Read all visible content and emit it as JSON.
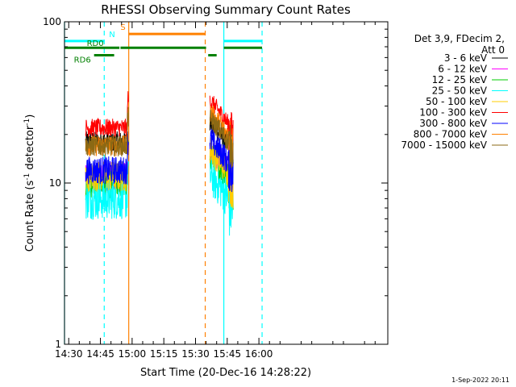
{
  "chart_data": {
    "type": "line",
    "title": "RHESSI Observing Summary Count Rates",
    "xlabel": "Start Time (20-Dec-16 14:28:22)",
    "ylabel": "Count Rate (s⁻¹ detector⁻¹)",
    "ylabel_main": "Count Rate (s",
    "ylabel_sup1": "-1",
    "ylabel_mid": " detector",
    "ylabel_sup2": "-1",
    "ylabel_end": ")",
    "yscale": "log",
    "ylim": [
      1,
      100
    ],
    "xlim_minutes": [
      -2,
      151
    ],
    "x_origin": "14:30",
    "x_ticks": [
      {
        "minute": 0,
        "label": "14:30"
      },
      {
        "minute": 15,
        "label": "14:45"
      },
      {
        "minute": 30,
        "label": "15:00"
      },
      {
        "minute": 45,
        "label": "15:15"
      },
      {
        "minute": 60,
        "label": "15:30"
      },
      {
        "minute": 75,
        "label": "15:45"
      },
      {
        "minute": 90,
        "label": "16:00"
      }
    ],
    "y_ticks": [
      {
        "value": 1,
        "label": "1"
      },
      {
        "value": 10,
        "label": "10"
      },
      {
        "value": 100,
        "label": "100"
      }
    ],
    "legend": {
      "header": [
        "Det 3,9, FDecim 2,",
        "Att 0"
      ],
      "position": "right"
    },
    "series": [
      {
        "name": "3 - 6 keV",
        "color": "#000000",
        "seg1": 18,
        "seg2": 19,
        "noise": 0.15
      },
      {
        "name": "6 - 12 keV",
        "color": "#ff00ff",
        "seg1": 11,
        "seg2": 13,
        "noise": 0.22
      },
      {
        "name": "12 - 25 keV",
        "color": "#00cc00",
        "seg1": 10,
        "seg2": 12,
        "noise": 0.22
      },
      {
        "name": "25 - 50 keV",
        "color": "#00ffff",
        "seg1": 8,
        "seg2": 9,
        "noise": 0.3
      },
      {
        "name": "50 - 100 keV",
        "color": "#ffcc00",
        "seg1": 11,
        "seg2": 13,
        "noise": 0.22
      },
      {
        "name": "100 - 300 keV",
        "color": "#ff0000",
        "seg1": 22,
        "seg2": 26,
        "noise": 0.13
      },
      {
        "name": "300 - 800 keV",
        "color": "#0000ff",
        "seg1": 12,
        "seg2": 15,
        "noise": 0.2
      },
      {
        "name": "800 - 7000 keV",
        "color": "#ff8000",
        "seg1": 17,
        "seg2": 22,
        "noise": 0.15
      },
      {
        "name": "7000 - 15000 keV",
        "color": "#8b6914",
        "seg1": 17,
        "seg2": 20,
        "noise": 0.15
      }
    ],
    "data_segments": [
      {
        "start_min": 8.0,
        "end_min": 28.3
      },
      {
        "start_min": 66.8,
        "end_min": 77.8
      }
    ],
    "vlines": [
      {
        "minute": -2.0,
        "color": "#00ffff",
        "style": "solid"
      },
      {
        "minute": 16.8,
        "color": "#00ffff",
        "style": "dashed"
      },
      {
        "minute": 28.4,
        "color": "#ff8000",
        "style": "solid"
      },
      {
        "minute": 64.6,
        "color": "#ff8000",
        "style": "dashed"
      },
      {
        "minute": 73.4,
        "color": "#00ffff",
        "style": "solid"
      },
      {
        "minute": 91.5,
        "color": "#00ffff",
        "style": "dashed"
      }
    ],
    "flag_bars": [
      {
        "label": "N",
        "color": "#00ffff",
        "y_value": 76,
        "start_min": -2.0,
        "end_min": 16.8,
        "label_side": "end"
      },
      {
        "label": "N",
        "color": "#00ffff",
        "y_value": 76,
        "start_min": 73.4,
        "end_min": 91.5,
        "label_side": "none"
      },
      {
        "label": "S",
        "color": "#ff8000",
        "y_value": 84,
        "start_min": 28.4,
        "end_min": 64.6,
        "label_side": "start"
      },
      {
        "label": "RD0",
        "color": "#008000",
        "y_value": 69,
        "start_min": -2.0,
        "end_min": 24.0,
        "label_side": "mid"
      },
      {
        "label": "",
        "color": "#008000",
        "y_value": 69,
        "start_min": 24.5,
        "end_min": 65.0,
        "label_side": "none"
      },
      {
        "label": "",
        "color": "#008000",
        "y_value": 69,
        "start_min": 73.4,
        "end_min": 91.5,
        "label_side": "none"
      },
      {
        "label": "RD6",
        "color": "#008000",
        "y_value": 62,
        "start_min": 12.0,
        "end_min": 21.5,
        "label_side": "start"
      },
      {
        "label": "",
        "color": "#008000",
        "y_value": 62,
        "start_min": 66.0,
        "end_min": 70.0,
        "label_side": "none"
      }
    ]
  },
  "footer": {
    "timestamp": "1-Sep-2022 20:11"
  }
}
